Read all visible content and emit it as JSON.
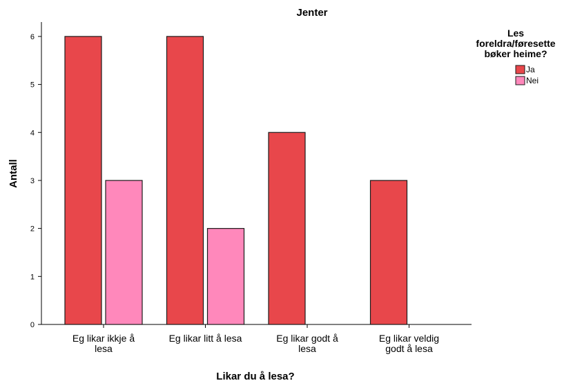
{
  "chart_data": {
    "type": "bar",
    "title": "Jenter",
    "xlabel": "Likar du å lesa?",
    "ylabel": "Antall",
    "categories": [
      [
        "Eg likar ikkje å",
        "lesa"
      ],
      [
        "Eg likar litt å lesa"
      ],
      [
        "Eg likar godt å",
        "lesa"
      ],
      [
        "Eg likar veldig",
        "godt å lesa"
      ]
    ],
    "series": [
      {
        "name": "Ja",
        "color": "#e8474b",
        "values": [
          6,
          6,
          4,
          3
        ]
      },
      {
        "name": "Nei",
        "color": "#ff88bb",
        "values": [
          3,
          2,
          null,
          null
        ]
      }
    ],
    "ylim": [
      0,
      6.3
    ],
    "yticks": [
      0,
      1,
      2,
      3,
      4,
      5,
      6
    ],
    "grid": false,
    "legend": {
      "title": [
        "Les",
        "foreldra/føresette",
        "bøker heime?"
      ],
      "position": "top-right"
    }
  }
}
